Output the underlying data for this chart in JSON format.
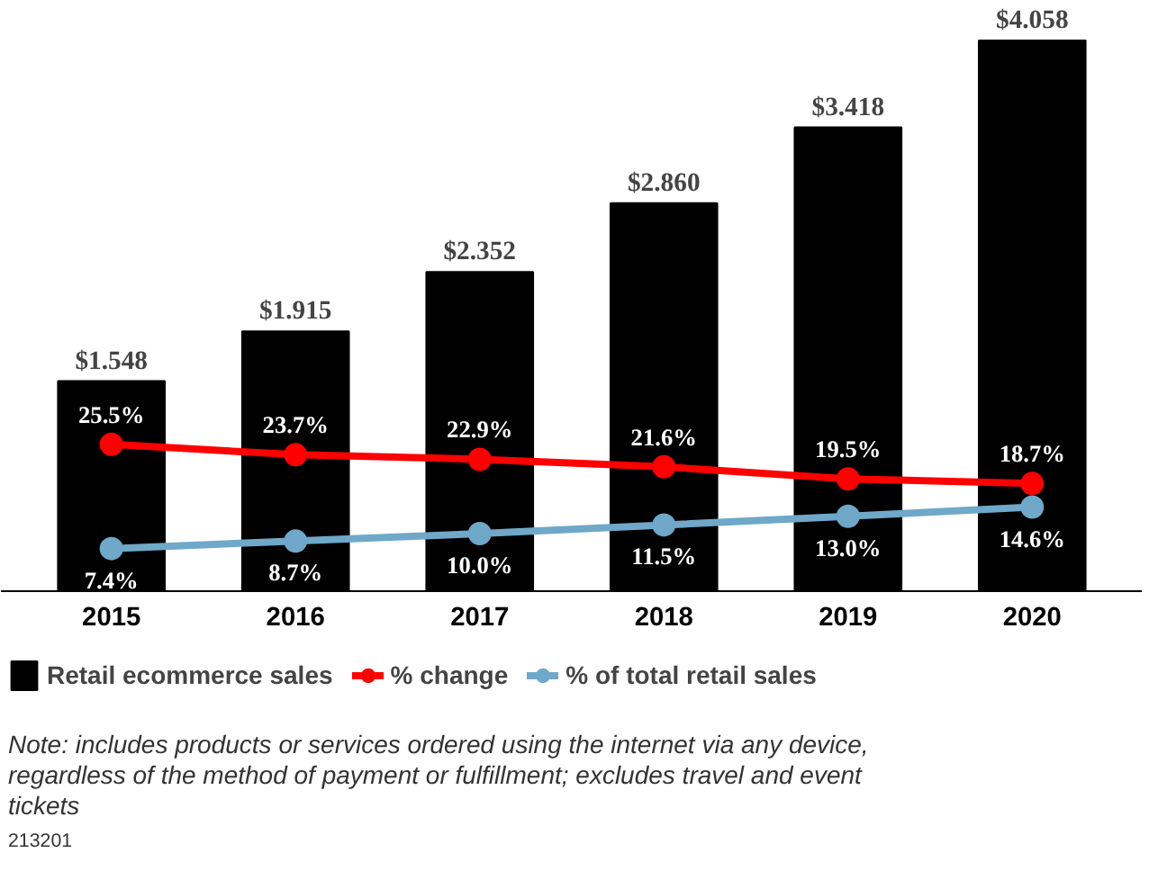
{
  "chart_data": {
    "type": "bar",
    "categories": [
      "2015",
      "2016",
      "2017",
      "2018",
      "2019",
      "2020"
    ],
    "series": [
      {
        "name": "Retail ecommerce sales",
        "color": "#000000",
        "values": [
          1.548,
          1.915,
          2.352,
          2.86,
          3.418,
          4.058
        ],
        "value_labels": [
          "$1.548",
          "$1.915",
          "$2.352",
          "$2.860",
          "$3.418",
          "$4.058"
        ]
      },
      {
        "name": "% change",
        "type": "line",
        "axis": "y2",
        "color": "#ff0000",
        "values": [
          25.5,
          23.7,
          22.9,
          21.6,
          19.5,
          18.7
        ],
        "value_labels": [
          "25.5%",
          "23.7%",
          "22.9%",
          "21.6%",
          "19.5%",
          "18.7%"
        ]
      },
      {
        "name": "% of total retail sales",
        "type": "line",
        "axis": "y2",
        "color": "#6fa8c8",
        "values": [
          7.4,
          8.7,
          10.0,
          11.5,
          13.0,
          14.6
        ],
        "value_labels": [
          "7.4%",
          "8.7%",
          "10.0%",
          "11.5%",
          "13.0%",
          "14.6%"
        ]
      }
    ],
    "tick_labels": "x",
    "marker": "circle",
    "legend": "bottom",
    "annotations": [
      "Note: includes products or services ordered using the internet via any device, regardless of the method of payment or fulfillment; excludes travel and event tickets",
      "213201"
    ]
  }
}
